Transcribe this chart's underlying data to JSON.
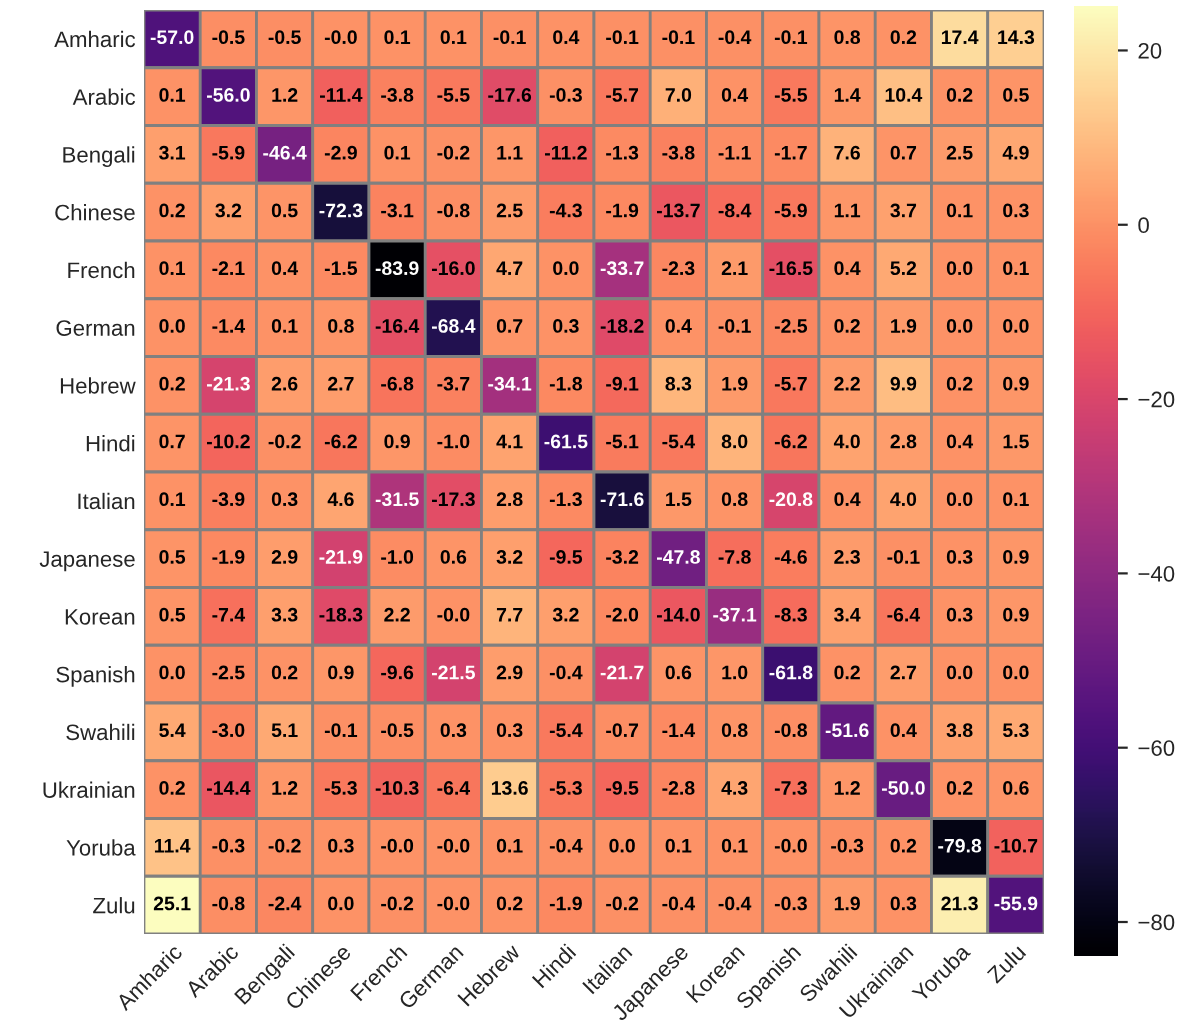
{
  "chart_data": {
    "type": "heatmap",
    "categories": [
      "Amharic",
      "Arabic",
      "Bengali",
      "Chinese",
      "French",
      "German",
      "Hebrew",
      "Hindi",
      "Italian",
      "Japanese",
      "Korean",
      "Spanish",
      "Swahili",
      "Ukrainian",
      "Yoruba",
      "Zulu"
    ],
    "y_categories": [
      "Amharic",
      "Arabic",
      "Bengali",
      "Chinese",
      "French",
      "German",
      "Hebrew",
      "Hindi",
      "Italian",
      "Japanese",
      "Korean",
      "Spanish",
      "Swahili",
      "Ukrainian",
      "Yoruba",
      "Zulu"
    ],
    "cells": [
      [
        -57.0,
        -0.5,
        -0.5,
        -0.0,
        0.1,
        0.1,
        -0.1,
        0.4,
        -0.1,
        -0.1,
        -0.4,
        -0.1,
        0.8,
        0.2,
        17.4,
        14.3
      ],
      [
        0.1,
        -56.0,
        1.2,
        -11.4,
        -3.8,
        -5.5,
        -17.6,
        -0.3,
        -5.7,
        7.0,
        0.4,
        -5.5,
        1.4,
        10.4,
        0.2,
        0.5
      ],
      [
        3.1,
        -5.9,
        -46.4,
        -2.9,
        0.1,
        -0.2,
        1.1,
        -11.2,
        -1.3,
        -3.8,
        -1.1,
        -1.7,
        7.6,
        0.7,
        2.5,
        4.9
      ],
      [
        0.2,
        3.2,
        0.5,
        -72.3,
        -3.1,
        -0.8,
        2.5,
        -4.3,
        -1.9,
        -13.7,
        -8.4,
        -5.9,
        1.1,
        3.7,
        0.1,
        0.3
      ],
      [
        0.1,
        -2.1,
        0.4,
        -1.5,
        -83.9,
        -16.0,
        4.7,
        0.0,
        -33.7,
        -2.3,
        2.1,
        -16.5,
        0.4,
        5.2,
        0.0,
        0.1
      ],
      [
        0.0,
        -1.4,
        0.1,
        0.8,
        -16.4,
        -68.4,
        0.7,
        0.3,
        -18.2,
        0.4,
        -0.1,
        -2.5,
        0.2,
        1.9,
        0.0,
        0.0
      ],
      [
        0.2,
        -21.3,
        2.6,
        2.7,
        -6.8,
        -3.7,
        -34.1,
        -1.8,
        -9.1,
        8.3,
        1.9,
        -5.7,
        2.2,
        9.9,
        0.2,
        0.9
      ],
      [
        0.7,
        -10.2,
        -0.2,
        -6.2,
        0.9,
        -1.0,
        4.1,
        -61.5,
        -5.1,
        -5.4,
        8.0,
        -6.2,
        4.0,
        2.8,
        0.4,
        1.5
      ],
      [
        0.1,
        -3.9,
        0.3,
        4.6,
        -31.5,
        -17.3,
        2.8,
        -1.3,
        -71.6,
        1.5,
        0.8,
        -20.8,
        0.4,
        4.0,
        0.0,
        0.1
      ],
      [
        0.5,
        -1.9,
        2.9,
        -21.9,
        -1.0,
        0.6,
        3.2,
        -9.5,
        -3.2,
        -47.8,
        -7.8,
        -4.6,
        2.3,
        -0.1,
        0.3,
        0.9
      ],
      [
        0.5,
        -7.4,
        3.3,
        -18.3,
        2.2,
        -0.0,
        7.7,
        3.2,
        -2.0,
        -14.0,
        -37.1,
        -8.3,
        3.4,
        -6.4,
        0.3,
        0.9
      ],
      [
        0.0,
        -2.5,
        0.2,
        0.9,
        -9.6,
        -21.5,
        2.9,
        -0.4,
        -21.7,
        0.6,
        1.0,
        -61.8,
        0.2,
        2.7,
        0.0,
        0.0
      ],
      [
        5.4,
        -3.0,
        5.1,
        -0.1,
        -0.5,
        0.3,
        0.3,
        -5.4,
        -0.7,
        -1.4,
        0.8,
        -0.8,
        -51.6,
        0.4,
        3.8,
        5.3
      ],
      [
        0.2,
        -14.4,
        1.2,
        -5.3,
        -10.3,
        -6.4,
        13.6,
        -5.3,
        -9.5,
        -2.8,
        4.3,
        -7.3,
        1.2,
        -50.0,
        0.2,
        0.6
      ],
      [
        11.4,
        -0.3,
        -0.2,
        0.3,
        -0.0,
        -0.0,
        0.1,
        -0.4,
        0.0,
        0.1,
        0.1,
        -0.0,
        -0.3,
        0.2,
        -79.8,
        -10.7
      ],
      [
        25.1,
        -0.8,
        -2.4,
        0.0,
        -0.2,
        -0.0,
        0.2,
        -1.9,
        -0.2,
        -0.4,
        -0.4,
        -0.3,
        1.9,
        0.3,
        21.3,
        -55.9
      ]
    ],
    "cell_labels": [
      [
        "-57.0",
        "-0.5",
        "-0.5",
        "-0.0",
        "0.1",
        "0.1",
        "-0.1",
        "0.4",
        "-0.1",
        "-0.1",
        "-0.4",
        "-0.1",
        "0.8",
        "0.2",
        "17.4",
        "14.3"
      ],
      [
        "0.1",
        "-56.0",
        "1.2",
        "-11.4",
        "-3.8",
        "-5.5",
        "-17.6",
        "-0.3",
        "-5.7",
        "7.0",
        "0.4",
        "-5.5",
        "1.4",
        "10.4",
        "0.2",
        "0.5"
      ],
      [
        "3.1",
        "-5.9",
        "-46.4",
        "-2.9",
        "0.1",
        "-0.2",
        "1.1",
        "-11.2",
        "-1.3",
        "-3.8",
        "-1.1",
        "-1.7",
        "7.6",
        "0.7",
        "2.5",
        "4.9"
      ],
      [
        "0.2",
        "3.2",
        "0.5",
        "-72.3",
        "-3.1",
        "-0.8",
        "2.5",
        "-4.3",
        "-1.9",
        "-13.7",
        "-8.4",
        "-5.9",
        "1.1",
        "3.7",
        "0.1",
        "0.3"
      ],
      [
        "0.1",
        "-2.1",
        "0.4",
        "-1.5",
        "-83.9",
        "-16.0",
        "4.7",
        "0.0",
        "-33.7",
        "-2.3",
        "2.1",
        "-16.5",
        "0.4",
        "5.2",
        "0.0",
        "0.1"
      ],
      [
        "0.0",
        "-1.4",
        "0.1",
        "0.8",
        "-16.4",
        "-68.4",
        "0.7",
        "0.3",
        "-18.2",
        "0.4",
        "-0.1",
        "-2.5",
        "0.2",
        "1.9",
        "0.0",
        "0.0"
      ],
      [
        "0.2",
        "-21.3",
        "2.6",
        "2.7",
        "-6.8",
        "-3.7",
        "-34.1",
        "-1.8",
        "-9.1",
        "8.3",
        "1.9",
        "-5.7",
        "2.2",
        "9.9",
        "0.2",
        "0.9"
      ],
      [
        "0.7",
        "-10.2",
        "-0.2",
        "-6.2",
        "0.9",
        "-1.0",
        "4.1",
        "-61.5",
        "-5.1",
        "-5.4",
        "8.0",
        "-6.2",
        "4.0",
        "2.8",
        "0.4",
        "1.5"
      ],
      [
        "0.1",
        "-3.9",
        "0.3",
        "4.6",
        "-31.5",
        "-17.3",
        "2.8",
        "-1.3",
        "-71.6",
        "1.5",
        "0.8",
        "-20.8",
        "0.4",
        "4.0",
        "0.0",
        "0.1"
      ],
      [
        "0.5",
        "-1.9",
        "2.9",
        "-21.9",
        "-1.0",
        "0.6",
        "3.2",
        "-9.5",
        "-3.2",
        "-47.8",
        "-7.8",
        "-4.6",
        "2.3",
        "-0.1",
        "0.3",
        "0.9"
      ],
      [
        "0.5",
        "-7.4",
        "3.3",
        "-18.3",
        "2.2",
        "-0.0",
        "7.7",
        "3.2",
        "-2.0",
        "-14.0",
        "-37.1",
        "-8.3",
        "3.4",
        "-6.4",
        "0.3",
        "0.9"
      ],
      [
        "0.0",
        "-2.5",
        "0.2",
        "0.9",
        "-9.6",
        "-21.5",
        "2.9",
        "-0.4",
        "-21.7",
        "0.6",
        "1.0",
        "-61.8",
        "0.2",
        "2.7",
        "0.0",
        "0.0"
      ],
      [
        "5.4",
        "-3.0",
        "5.1",
        "-0.1",
        "-0.5",
        "0.3",
        "0.3",
        "-5.4",
        "-0.7",
        "-1.4",
        "0.8",
        "-0.8",
        "-51.6",
        "0.4",
        "3.8",
        "5.3"
      ],
      [
        "0.2",
        "-14.4",
        "1.2",
        "-5.3",
        "-10.3",
        "-6.4",
        "13.6",
        "-5.3",
        "-9.5",
        "-2.8",
        "4.3",
        "-7.3",
        "1.2",
        "-50.0",
        "0.2",
        "0.6"
      ],
      [
        "11.4",
        "-0.3",
        "-0.2",
        "0.3",
        "-0.0",
        "-0.0",
        "0.1",
        "-0.4",
        "0.0",
        "0.1",
        "0.1",
        "-0.0",
        "-0.3",
        "0.2",
        "-79.8",
        "-10.7"
      ],
      [
        "25.1",
        "-0.8",
        "-2.4",
        "0.0",
        "-0.2",
        "-0.0",
        "0.2",
        "-1.9",
        "-0.2",
        "-0.4",
        "-0.4",
        "-0.3",
        "1.9",
        "0.3",
        "21.3",
        "-55.9"
      ]
    ],
    "clim": [
      -83.9,
      25.1
    ],
    "cticks": [
      -80,
      -60,
      -40,
      -20,
      0,
      20
    ],
    "data_labels": true
  }
}
